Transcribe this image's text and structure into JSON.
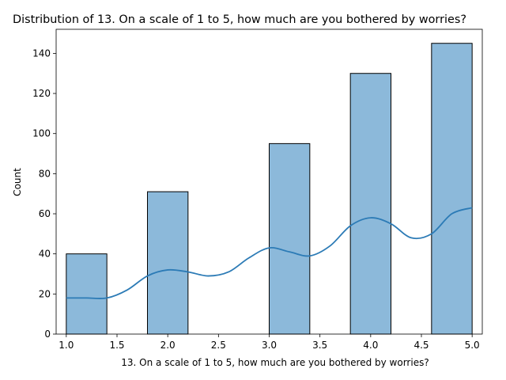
{
  "chart_data": {
    "type": "bar",
    "title": "Distribution of 13. On a scale of 1 to 5, how much are you bothered by worries?",
    "xlabel": "13. On a scale of 1 to 5, how much are you bothered by worries?",
    "ylabel": "Count",
    "xlim": [
      0.9,
      5.1
    ],
    "ylim": [
      0,
      152
    ],
    "x_ticks": [
      "1.0",
      "1.5",
      "2.0",
      "2.5",
      "3.0",
      "3.5",
      "4.0",
      "4.5",
      "5.0"
    ],
    "y_ticks": [
      "0",
      "20",
      "40",
      "60",
      "80",
      "100",
      "120",
      "140"
    ],
    "bins": [
      {
        "x0": 1.0,
        "x1": 1.4,
        "count": 40
      },
      {
        "x0": 1.8,
        "x1": 2.2,
        "count": 71
      },
      {
        "x0": 2.6,
        "x1": 3.0,
        "count": 0
      },
      {
        "x0": 3.0,
        "x1": 3.4,
        "count": 95
      },
      {
        "x0": 3.8,
        "x1": 4.2,
        "count": 130
      },
      {
        "x0": 4.6,
        "x1": 5.0,
        "count": 145
      }
    ],
    "kde": {
      "x": [
        1.0,
        1.2,
        1.4,
        1.6,
        1.8,
        2.0,
        2.2,
        2.4,
        2.6,
        2.8,
        3.0,
        3.2,
        3.4,
        3.6,
        3.8,
        4.0,
        4.2,
        4.4,
        4.6,
        4.8,
        5.0
      ],
      "y": [
        18,
        18,
        18,
        22,
        29,
        32,
        31,
        29,
        31,
        38,
        43,
        41,
        39,
        44,
        54,
        58,
        55,
        48,
        50,
        60,
        63
      ]
    },
    "colors": {
      "bar_fill": "#8cb9da",
      "bar_edge": "#000000",
      "kde_line": "#2c7bb6"
    },
    "grid": false,
    "legend": "none"
  }
}
